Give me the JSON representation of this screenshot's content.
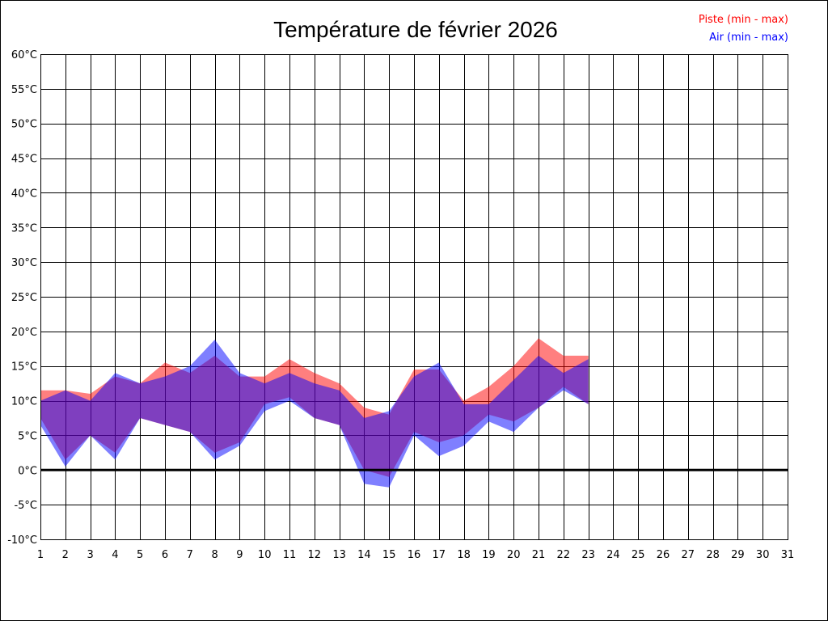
{
  "chart_data": {
    "type": "area",
    "title": "Température de février 2026",
    "xlabel": "",
    "ylabel": "",
    "x": [
      1,
      2,
      3,
      4,
      5,
      6,
      7,
      8,
      9,
      10,
      11,
      12,
      13,
      14,
      15,
      16,
      17,
      18,
      19,
      20,
      21,
      22,
      23
    ],
    "x_ticks": [
      "1",
      "2",
      "3",
      "4",
      "5",
      "6",
      "7",
      "8",
      "9",
      "10",
      "11",
      "12",
      "13",
      "14",
      "15",
      "16",
      "17",
      "18",
      "19",
      "20",
      "21",
      "22",
      "23",
      "24",
      "25",
      "26",
      "27",
      "28",
      "29",
      "30",
      "31"
    ],
    "xlim": [
      1,
      31
    ],
    "ylim": [
      -10,
      60
    ],
    "y_ticks": [
      "-10°C",
      "-5°C",
      "0°C",
      "5°C",
      "10°C",
      "15°C",
      "20°C",
      "25°C",
      "30°C",
      "35°C",
      "40°C",
      "45°C",
      "50°C",
      "55°C",
      "60°C"
    ],
    "grid": true,
    "legend_position": "top-right",
    "series": [
      {
        "name": "Piste (min - max)",
        "color": "#ff0000",
        "min": [
          7.5,
          1.5,
          5.0,
          2.5,
          7.5,
          6.5,
          5.5,
          2.5,
          4.0,
          9.5,
          10.5,
          7.5,
          6.5,
          0.0,
          -1.0,
          5.5,
          4.0,
          5.0,
          8.0,
          7.0,
          9.0,
          12.0,
          9.5
        ],
        "max": [
          11.5,
          11.5,
          11.0,
          13.5,
          12.5,
          15.5,
          14.0,
          16.5,
          13.5,
          13.5,
          16.0,
          14.0,
          12.5,
          9.0,
          8.0,
          14.5,
          14.5,
          10.0,
          12.0,
          15.0,
          19.0,
          16.5,
          16.5
        ]
      },
      {
        "name": "Air (min - max)",
        "color": "#0000ff",
        "min": [
          6.5,
          0.5,
          5.0,
          1.5,
          7.5,
          6.5,
          5.5,
          1.5,
          3.5,
          8.5,
          10.0,
          7.5,
          6.5,
          -2.0,
          -2.5,
          5.0,
          2.0,
          3.5,
          7.0,
          5.5,
          9.0,
          11.5,
          9.5
        ],
        "max": [
          10.0,
          11.5,
          10.0,
          14.0,
          12.5,
          13.5,
          15.0,
          18.8,
          14.0,
          12.5,
          14.0,
          12.5,
          11.5,
          7.5,
          8.5,
          13.5,
          15.5,
          9.5,
          9.5,
          13.0,
          16.5,
          14.0,
          16.0
        ]
      }
    ],
    "zero_line": 0
  }
}
